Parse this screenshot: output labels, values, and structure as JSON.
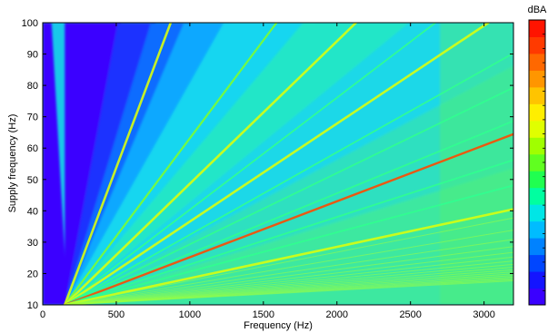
{
  "chart_data": {
    "type": "heatmap",
    "title": "",
    "xlabel": "Frequency (Hz)",
    "ylabel": "Supply frequency (Hz)",
    "xlim": [
      0,
      3200
    ],
    "ylim": [
      10,
      100
    ],
    "xticks": [
      0,
      500,
      1000,
      1500,
      2000,
      2500,
      3000
    ],
    "yticks": [
      10,
      20,
      30,
      40,
      50,
      60,
      70,
      80,
      90,
      100
    ],
    "colorbar": {
      "label": "dBA",
      "colormap": "jet",
      "levels": 20,
      "tick_labels_visible": false,
      "colors": [
        "#3a00ff",
        "#1414ff",
        "#0046ff",
        "#0082ff",
        "#00bcff",
        "#00e6e6",
        "#00ffa0",
        "#20ff50",
        "#60ff20",
        "#a0ff00",
        "#e0ff00",
        "#ffee00",
        "#ffc400",
        "#ff9600",
        "#ff6800",
        "#ff3a00",
        "#ff1400"
      ]
    },
    "grid": false,
    "description_series": [
      {
        "ratio_hz_per_hz": 8,
        "intensity": "high"
      },
      {
        "ratio_hz_per_hz": 16,
        "intensity": "medium-high"
      },
      {
        "ratio_hz_per_hz": 22,
        "intensity": "high"
      },
      {
        "ratio_hz_per_hz": 28,
        "intensity": "medium"
      },
      {
        "ratio_hz_per_hz": 32,
        "intensity": "high"
      },
      {
        "ratio_hz_per_hz": 38,
        "intensity": "medium"
      },
      {
        "ratio_hz_per_hz": 44,
        "intensity": "medium"
      },
      {
        "ratio_hz_per_hz": 52,
        "intensity": "medium"
      },
      {
        "ratio_hz_per_hz": 56,
        "intensity": "very-high"
      },
      {
        "ratio_hz_per_hz": 66,
        "intensity": "medium"
      },
      {
        "ratio_hz_per_hz": 80,
        "intensity": "medium"
      },
      {
        "ratio_hz_per_hz": 100,
        "intensity": "high"
      }
    ]
  }
}
